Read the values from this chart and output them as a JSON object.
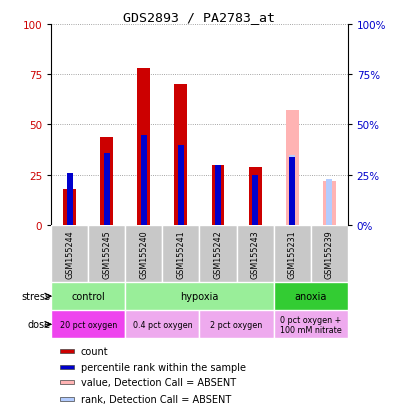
{
  "title": "GDS2893 / PA2783_at",
  "samples": [
    "GSM155244",
    "GSM155245",
    "GSM155240",
    "GSM155241",
    "GSM155242",
    "GSM155243",
    "GSM155231",
    "GSM155239"
  ],
  "count_values": [
    18,
    44,
    78,
    70,
    30,
    29,
    0,
    0
  ],
  "rank_values": [
    26,
    36,
    45,
    40,
    30,
    25,
    34,
    0
  ],
  "absent_value": [
    0,
    0,
    0,
    0,
    0,
    0,
    57,
    22
  ],
  "absent_rank": [
    0,
    0,
    0,
    0,
    0,
    0,
    35,
    23
  ],
  "stress_groups": [
    {
      "label": "control",
      "start": 0,
      "end": 2,
      "color": "#99EE99"
    },
    {
      "label": "hypoxia",
      "start": 2,
      "end": 6,
      "color": "#99EE99"
    },
    {
      "label": "anoxia",
      "start": 6,
      "end": 8,
      "color": "#33CC33"
    }
  ],
  "dose_groups": [
    {
      "label": "20 pct oxygen",
      "start": 0,
      "end": 2,
      "color": "#EE44EE"
    },
    {
      "label": "0.4 pct oxygen",
      "start": 2,
      "end": 4,
      "color": "#EEAAEE"
    },
    {
      "label": "2 pct oxygen",
      "start": 4,
      "end": 6,
      "color": "#EEAAEE"
    },
    {
      "label": "0 pct oxygen +\n100 mM nitrate",
      "start": 6,
      "end": 8,
      "color": "#EEAAEE"
    }
  ],
  "bar_width": 0.35,
  "rank_bar_width": 0.18,
  "ylim": [
    0,
    100
  ],
  "yticks": [
    0,
    25,
    50,
    75,
    100
  ],
  "count_color": "#CC0000",
  "rank_color": "#0000CC",
  "absent_val_color": "#FFB3B3",
  "absent_rank_color": "#B3CCFF",
  "sample_box_color": "#C8C8C8",
  "legend_items": [
    {
      "label": "count",
      "color": "#CC0000"
    },
    {
      "label": "percentile rank within the sample",
      "color": "#0000CC"
    },
    {
      "label": "value, Detection Call = ABSENT",
      "color": "#FFB3B3"
    },
    {
      "label": "rank, Detection Call = ABSENT",
      "color": "#B3CCFF"
    }
  ],
  "grid_color": "#888888",
  "grid_linestyle": "dotted"
}
